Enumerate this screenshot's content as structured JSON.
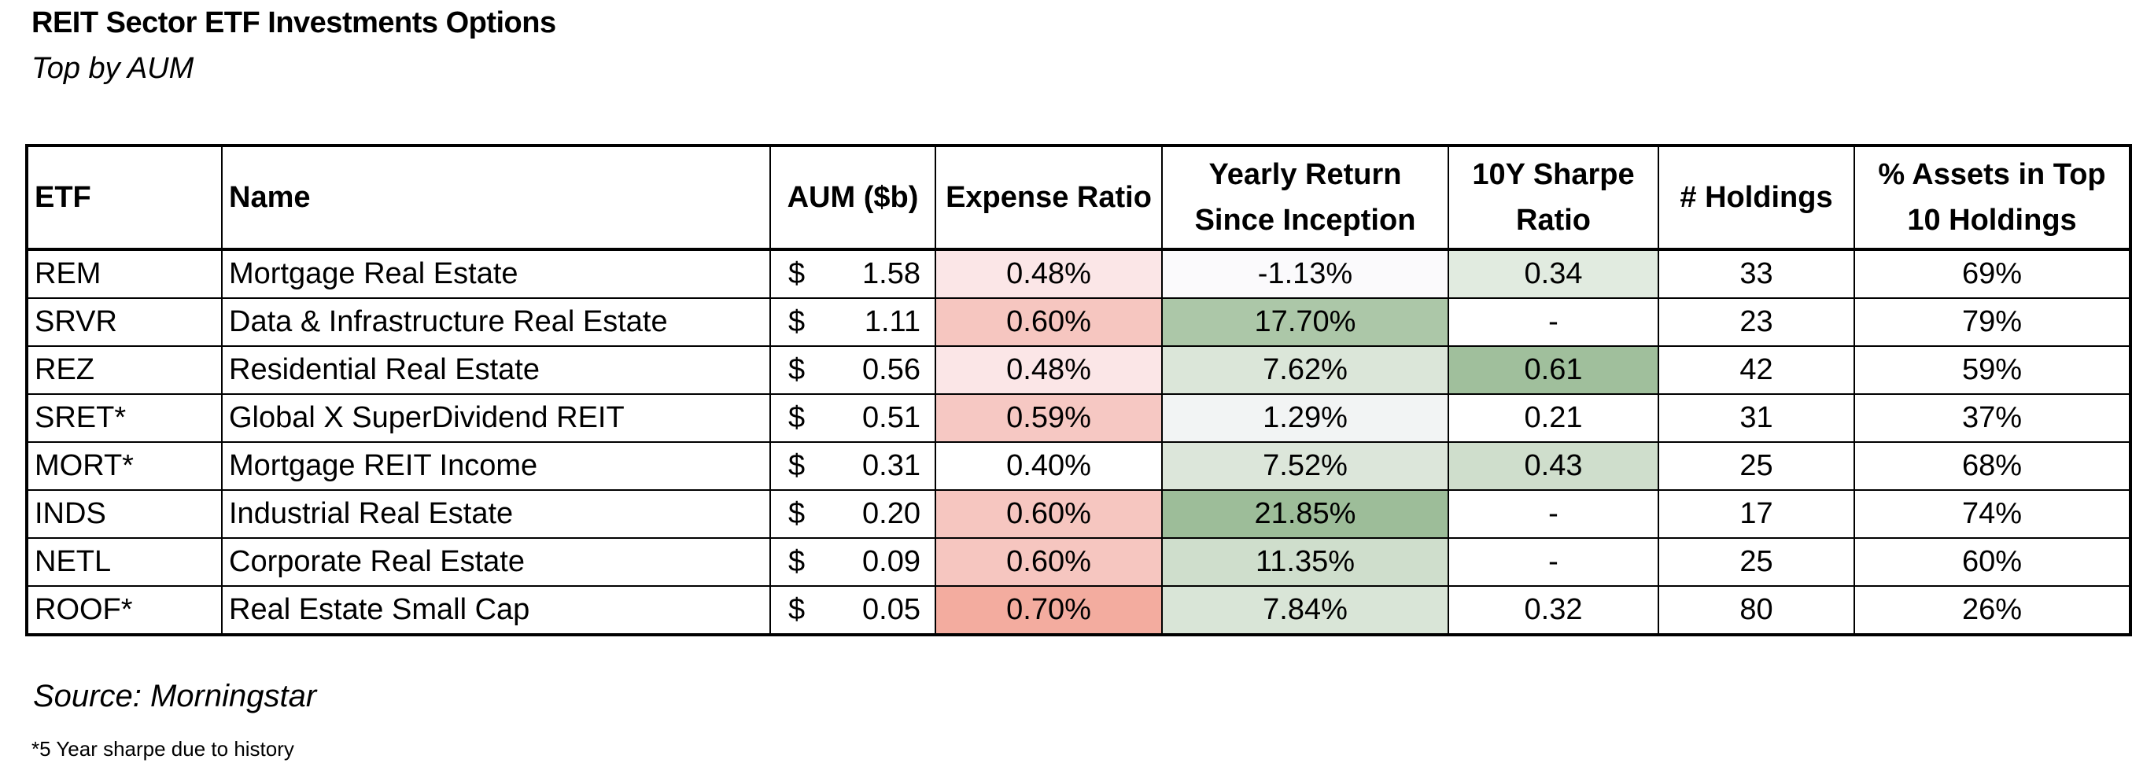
{
  "title": "REIT Sector ETF Investments Options",
  "subtitle": "Top by AUM",
  "source": "Source: Morningstar",
  "footnote": "*5 Year sharpe due to history",
  "chart_data": {
    "type": "table",
    "columns": [
      "ETF",
      "Name",
      "AUM ($b)",
      "Expense Ratio",
      "Yearly Return Since Inception",
      "10Y Sharpe Ratio",
      "# Holdings",
      "% Assets in Top 10 Holdings"
    ],
    "header_lines": [
      [
        "ETF"
      ],
      [
        "Name"
      ],
      [
        "AUM ($b)"
      ],
      [
        "Expense Ratio"
      ],
      [
        "Yearly Return",
        "Since Inception"
      ],
      [
        "10Y Sharpe",
        "Ratio"
      ],
      [
        "# Holdings"
      ],
      [
        "% Assets in Top",
        "10 Holdings"
      ]
    ],
    "rows": [
      {
        "etf": "REM",
        "name": "Mortgage Real Estate",
        "aum_symbol": "$",
        "aum": "1.58",
        "expense": "0.48%",
        "return": "-1.13%",
        "sharpe": "0.34",
        "holdings": "33",
        "top10": "69%",
        "expense_color": "#fbe6e7",
        "return_color": "#fbfafc",
        "sharpe_color": "#e1ebe0"
      },
      {
        "etf": "SRVR",
        "name": "Data & Infrastructure Real Estate",
        "aum_symbol": "$",
        "aum": "1.11",
        "expense": "0.60%",
        "return": "17.70%",
        "sharpe": "-",
        "holdings": "23",
        "top10": "79%",
        "expense_color": "#f6c6c0",
        "return_color": "#acc7a8",
        "sharpe_color": "#ffffff"
      },
      {
        "etf": "REZ",
        "name": "Residential Real Estate",
        "aum_symbol": "$",
        "aum": "0.56",
        "expense": "0.48%",
        "return": "7.62%",
        "sharpe": "0.61",
        "holdings": "42",
        "top10": "59%",
        "expense_color": "#fbe6e7",
        "return_color": "#dbe6d9",
        "sharpe_color": "#a0bf9c"
      },
      {
        "etf": "SRET*",
        "name": "Global X SuperDividend REIT",
        "aum_symbol": "$",
        "aum": "0.51",
        "expense": "0.59%",
        "return": "1.29%",
        "sharpe": "0.21",
        "holdings": "31",
        "top10": "37%",
        "expense_color": "#f6c8c3",
        "return_color": "#f2f4f4",
        "sharpe_color": "#ffffff"
      },
      {
        "etf": "MORT*",
        "name": "Mortgage REIT Income",
        "aum_symbol": "$",
        "aum": "0.31",
        "expense": "0.40%",
        "return": "7.52%",
        "sharpe": "0.43",
        "holdings": "25",
        "top10": "68%",
        "expense_color": "#ffffff",
        "return_color": "#dce6da",
        "sharpe_color": "#cfdecc"
      },
      {
        "etf": "INDS",
        "name": "Industrial Real Estate",
        "aum_symbol": "$",
        "aum": "0.20",
        "expense": "0.60%",
        "return": "21.85%",
        "sharpe": "-",
        "holdings": "17",
        "top10": "74%",
        "expense_color": "#f6c6c0",
        "return_color": "#9dbd99",
        "sharpe_color": "#ffffff"
      },
      {
        "etf": "NETL",
        "name": "Corporate Real Estate",
        "aum_symbol": "$",
        "aum": "0.09",
        "expense": "0.60%",
        "return": "11.35%",
        "sharpe": "-",
        "holdings": "25",
        "top10": "60%",
        "expense_color": "#f6c6c0",
        "return_color": "#cfdecc",
        "sharpe_color": "#ffffff"
      },
      {
        "etf": "ROOF*",
        "name": "Real Estate Small Cap",
        "aum_symbol": "$",
        "aum": "0.05",
        "expense": "0.70%",
        "return": "7.84%",
        "sharpe": "0.32",
        "holdings": "80",
        "top10": "26%",
        "expense_color": "#f3ac9f",
        "return_color": "#d9e5d7",
        "sharpe_color": "#ffffff"
      }
    ]
  }
}
